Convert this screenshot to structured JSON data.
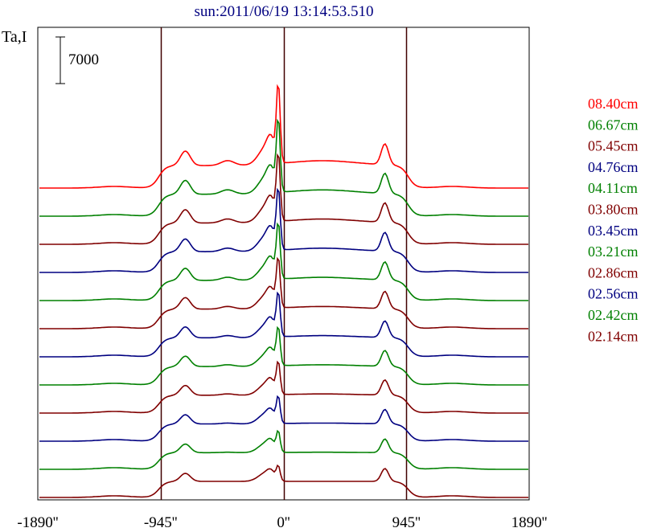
{
  "chart_data": {
    "type": "line",
    "title": "sun:2011/06/19 13:14:53.510",
    "ylabel": "Ta,I",
    "scale_bar_label": "7000",
    "scale_bar_value": 7000,
    "xlim": [
      -1890,
      1890
    ],
    "x_ticks": [
      {
        "value": -1890,
        "label": "-1890''"
      },
      {
        "value": -945,
        "label": "-945''"
      },
      {
        "value": 0,
        "label": "0''"
      },
      {
        "value": 945,
        "label": "945''"
      },
      {
        "value": 1890,
        "label": "1890''"
      }
    ],
    "vertical_lines": [
      -945,
      0,
      945
    ],
    "grid": false,
    "legend_position": "right",
    "series": [
      {
        "name": "08.40cm",
        "color": "#ff0000",
        "baseline": 0,
        "scale": 1.0,
        "peak": 1.0
      },
      {
        "name": "06.67cm",
        "color": "#008000",
        "baseline": 0,
        "scale": 1.0,
        "peak": 1.0
      },
      {
        "name": "05.45cm",
        "color": "#800000",
        "baseline": 0,
        "scale": 1.0,
        "peak": 1.0
      },
      {
        "name": "04.76cm",
        "color": "#000080",
        "baseline": 0,
        "scale": 1.0,
        "peak": 1.0
      },
      {
        "name": "04.11cm",
        "color": "#008000",
        "baseline": 0,
        "scale": 1.0,
        "peak": 1.0
      },
      {
        "name": "03.80cm",
        "color": "#800000",
        "baseline": 0,
        "scale": 1.0,
        "peak": 1.0
      },
      {
        "name": "03.45cm",
        "color": "#000080",
        "baseline": 0,
        "scale": 1.0,
        "peak": 1.0
      },
      {
        "name": "03.21cm",
        "color": "#008000",
        "baseline": 0,
        "scale": 1.0,
        "peak": 1.0
      },
      {
        "name": "02.86cm",
        "color": "#800000",
        "baseline": 0,
        "scale": 1.0,
        "peak": 1.0
      },
      {
        "name": "02.56cm",
        "color": "#000080",
        "baseline": 0,
        "scale": 1.0,
        "peak": 1.0
      },
      {
        "name": "02.42cm",
        "color": "#008000",
        "baseline": 0,
        "scale": 1.0,
        "peak": 1.0
      },
      {
        "name": "02.14cm",
        "color": "#800000",
        "baseline": 0,
        "scale": 1.0,
        "peak": 1.0
      }
    ]
  }
}
